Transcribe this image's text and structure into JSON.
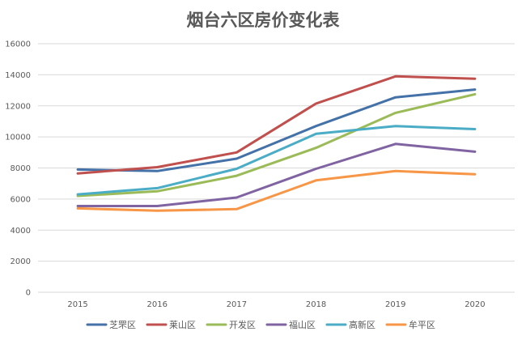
{
  "chart_data": {
    "type": "line",
    "title": "烟台六区房价变化表",
    "xlabel": "",
    "ylabel": "",
    "x": [
      "2015",
      "2016",
      "2017",
      "2018",
      "2019",
      "2020"
    ],
    "ylim": [
      0,
      16000
    ],
    "yticks": [
      0,
      2000,
      4000,
      6000,
      8000,
      10000,
      12000,
      14000,
      16000
    ],
    "grid": true,
    "legend_position": "bottom",
    "series": [
      {
        "name": "芝罘区",
        "color": "#4472a8",
        "values": [
          7900,
          7800,
          8600,
          10700,
          12550,
          13050
        ]
      },
      {
        "name": "莱山区",
        "color": "#c0504d",
        "values": [
          7650,
          8050,
          9000,
          12150,
          13900,
          13750
        ]
      },
      {
        "name": "开发区",
        "color": "#9bbb59",
        "values": [
          6200,
          6500,
          7500,
          9300,
          11550,
          12750
        ]
      },
      {
        "name": "福山区",
        "color": "#8064a2",
        "values": [
          5550,
          5550,
          6100,
          7950,
          9550,
          9050
        ]
      },
      {
        "name": "高新区",
        "color": "#4bacc6",
        "values": [
          6300,
          6700,
          7950,
          10200,
          10700,
          10500
        ]
      },
      {
        "name": "牟平区",
        "color": "#f79646",
        "values": [
          5400,
          5250,
          5350,
          7200,
          7800,
          7600
        ]
      }
    ]
  }
}
